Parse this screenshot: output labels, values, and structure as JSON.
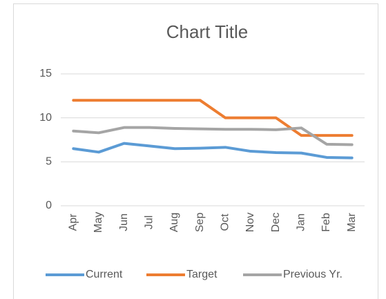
{
  "chart_data": {
    "type": "line",
    "title": "Chart Title",
    "categories": [
      "Apr",
      "May",
      "Jun",
      "Jul",
      "Aug",
      "Sep",
      "Oct",
      "Nov",
      "Dec",
      "Jan",
      "Feb",
      "Mar"
    ],
    "series": [
      {
        "name": "Current",
        "color": "#5b9bd5",
        "values": [
          6.5,
          6.1,
          7.1,
          6.8,
          6.5,
          6.55,
          6.65,
          6.2,
          6.05,
          6.0,
          5.5,
          5.45
        ]
      },
      {
        "name": "Target",
        "color": "#ed7d31",
        "values": [
          12,
          12,
          12,
          12,
          12,
          12,
          10,
          10,
          10,
          8,
          8,
          8
        ]
      },
      {
        "name": "Previous Yr.",
        "color": "#a5a5a5",
        "values": [
          8.5,
          8.3,
          8.9,
          8.9,
          8.8,
          8.75,
          8.7,
          8.7,
          8.65,
          8.85,
          7.0,
          6.95
        ]
      }
    ],
    "ylim": [
      0,
      15
    ],
    "yticks": [
      0,
      5,
      10,
      15
    ],
    "grid": true,
    "legend": "bottom"
  }
}
